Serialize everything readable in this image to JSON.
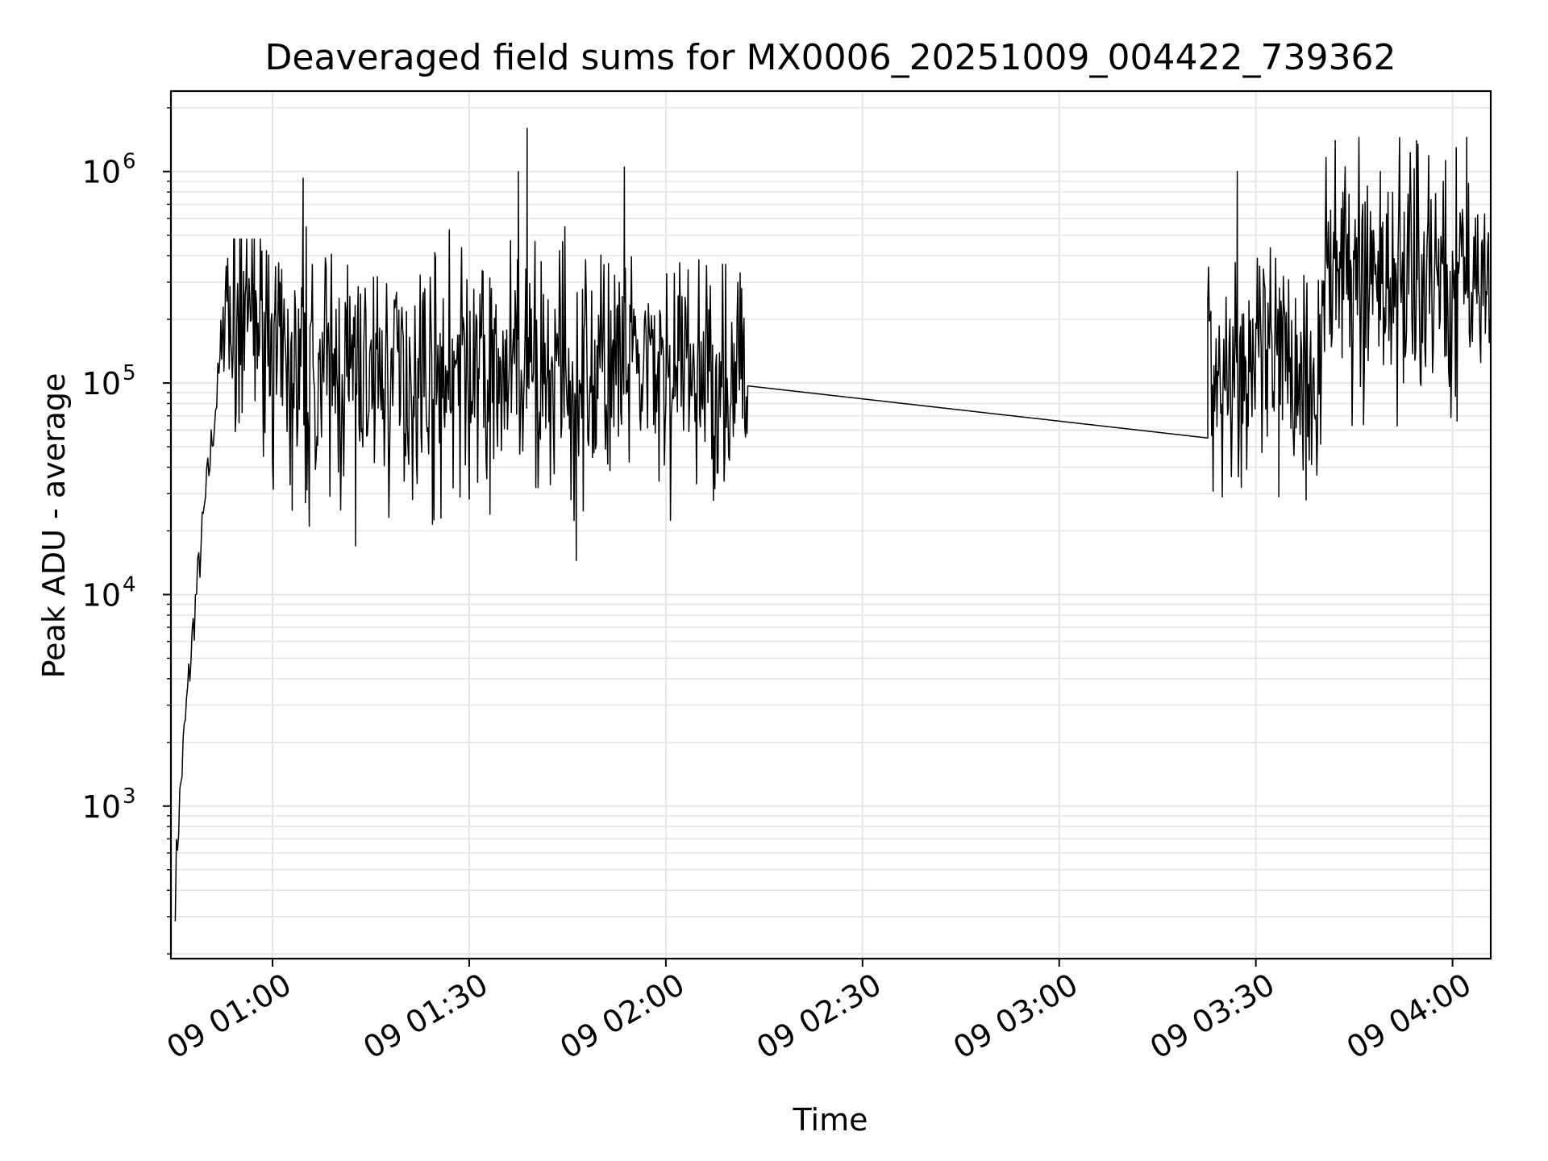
{
  "chart_data": {
    "type": "line",
    "title": "Deaveraged field sums for MX0006_20251009_004422_739362",
    "xlabel": "Time",
    "ylabel": "Peak ADU - average",
    "yscale": "log",
    "ylim": [
      190,
      2400000
    ],
    "xlim": [
      "09 00:44:30",
      "09 04:05:50"
    ],
    "grid": true,
    "x_ticks": [
      {
        "time": "01:00",
        "label": "09 01:00"
      },
      {
        "time": "01:30",
        "label": "09 01:30"
      },
      {
        "time": "02:00",
        "label": "09 02:00"
      },
      {
        "time": "02:30",
        "label": "09 02:30"
      },
      {
        "time": "03:00",
        "label": "09 03:00"
      },
      {
        "time": "03:30",
        "label": "09 03:30"
      },
      {
        "time": "04:00",
        "label": "09 04:00"
      }
    ],
    "y_ticks": [
      {
        "value": 1000,
        "base": "10",
        "exp": "3"
      },
      {
        "value": 10000,
        "base": "10",
        "exp": "4"
      },
      {
        "value": 100000,
        "base": "10",
        "exp": "5"
      },
      {
        "value": 1000000,
        "base": "10",
        "exp": "6"
      }
    ],
    "series": [
      {
        "name": "field sums",
        "color": "#000000",
        "segments": [
          {
            "start": "00:45:10",
            "end": "00:52:00",
            "profile": "rise",
            "from": 380,
            "to": 120000
          },
          {
            "start": "00:52:00",
            "end": "01:00:00",
            "profile": "noise",
            "center": 200000,
            "lo": 45000,
            "hi": 480000
          },
          {
            "start": "01:00:00",
            "end": "02:12:30",
            "profile": "noise",
            "center": 110000,
            "lo": 14500,
            "hi": 1600000
          },
          {
            "start": "02:12:30",
            "end": "03:22:40",
            "profile": "line",
            "from": 97000,
            "to": 55000
          },
          {
            "start": "03:22:40",
            "end": "03:40:00",
            "profile": "noise",
            "center": 120000,
            "lo": 28000,
            "hi": 1000000
          },
          {
            "start": "03:40:00",
            "end": "04:05:50",
            "profile": "noise",
            "center": 320000,
            "lo": 50000,
            "hi": 1450000
          }
        ],
        "spikes": [
          {
            "time": "01:04:40",
            "value": 930000
          },
          {
            "time": "01:37:30",
            "value": 1000000
          },
          {
            "time": "01:38:50",
            "value": 1600000
          },
          {
            "time": "01:53:40",
            "value": 1050000
          },
          {
            "time": "01:46:20",
            "value": 14500
          },
          {
            "time": "01:12:40",
            "value": 17000
          },
          {
            "time": "01:03:00",
            "value": 25000
          },
          {
            "time": "01:33:10",
            "value": 24000
          },
          {
            "time": "03:27:10",
            "value": 1000000
          },
          {
            "time": "03:33:30",
            "value": 29000
          },
          {
            "time": "03:37:40",
            "value": 28000
          },
          {
            "time": "03:49:00",
            "value": 1000000
          },
          {
            "time": "03:54:30",
            "value": 1400000
          },
          {
            "time": "04:02:10",
            "value": 1450000
          }
        ]
      }
    ]
  }
}
